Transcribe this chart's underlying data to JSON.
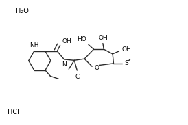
{
  "background_color": "#ffffff",
  "figure_width": 2.74,
  "figure_height": 1.83,
  "dpi": 100,
  "line_color": "#2a2a2a",
  "line_width": 1.0,
  "font_size": 6.5,
  "h2o_text": "H₂O",
  "hcl_text": "HCl",
  "xlim": [
    0,
    10
  ],
  "ylim": [
    0,
    6.5
  ]
}
